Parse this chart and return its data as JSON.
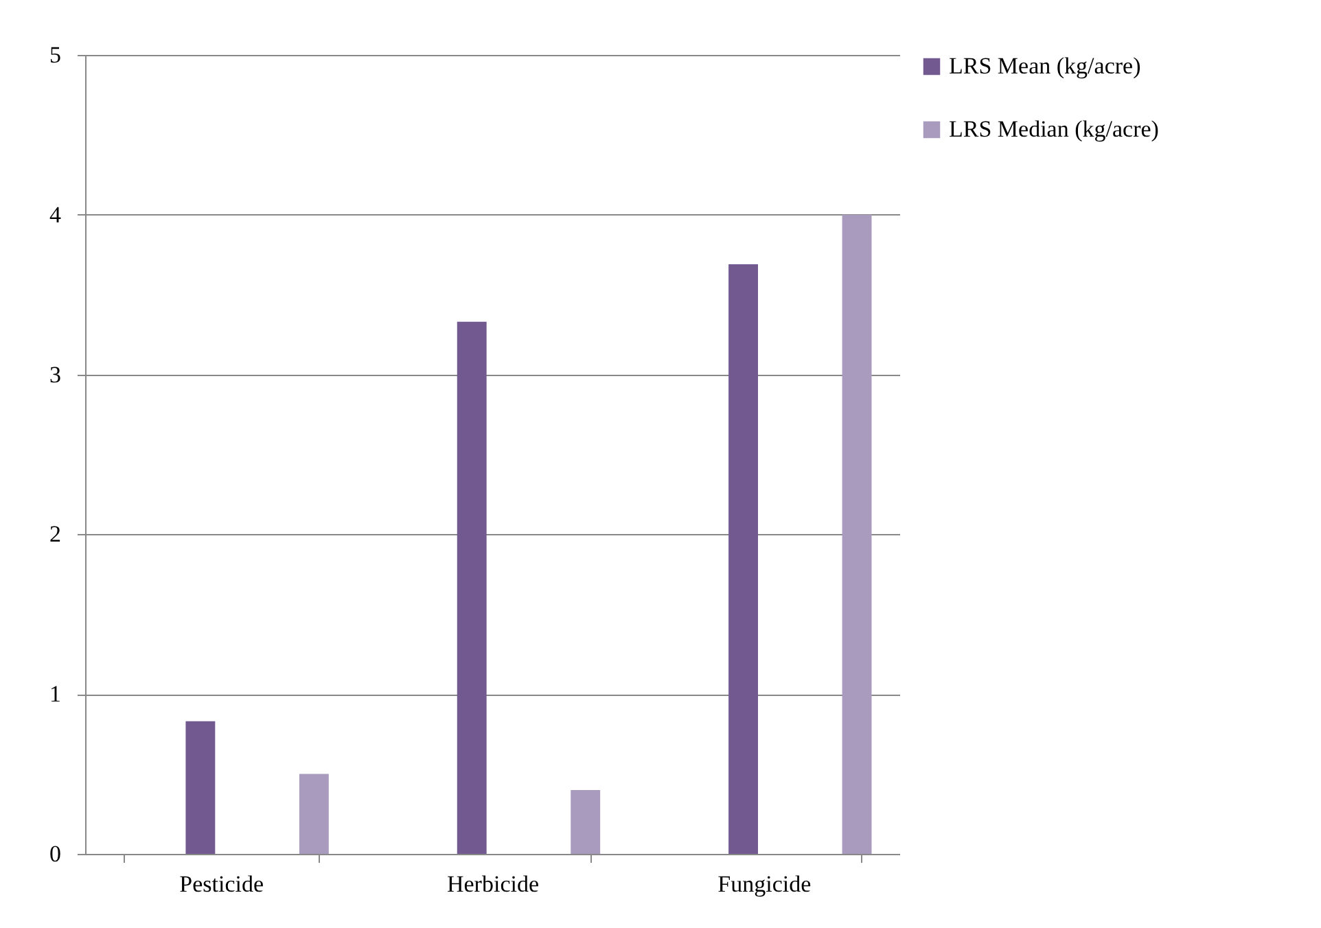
{
  "chart_data": {
    "type": "bar",
    "categories": [
      "Pesticide",
      "Herbicide",
      "Fungicide"
    ],
    "series": [
      {
        "name": "LRS Mean (kg/acre)",
        "color": "#725990",
        "values": [
          0.83,
          3.33,
          3.69
        ]
      },
      {
        "name": "LRS Median (kg/acre)",
        "color": "#a99bbd",
        "values": [
          0.5,
          0.4,
          4.0
        ]
      }
    ],
    "ylim": [
      0,
      5
    ],
    "yticks": [
      0,
      1,
      2,
      3,
      4,
      5
    ],
    "grid": "y",
    "legend": "right"
  }
}
